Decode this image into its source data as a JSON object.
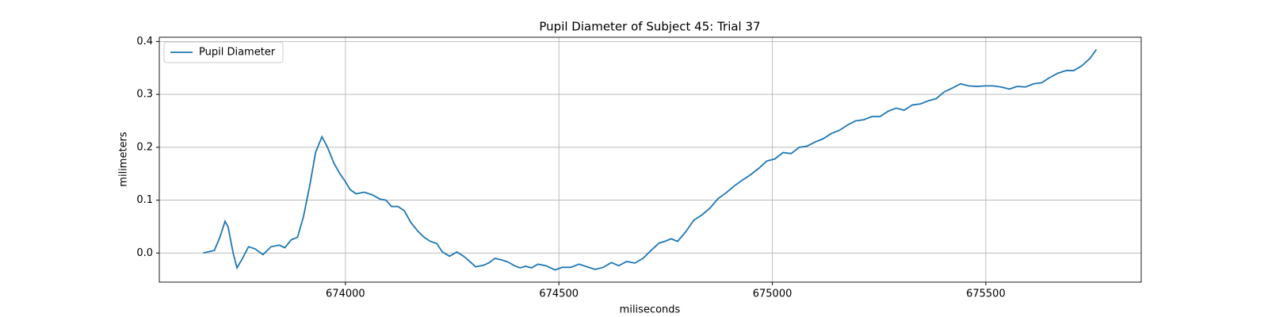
{
  "chart_data": {
    "type": "line",
    "title": "Pupil Diameter of Subject 45: Trial 37",
    "xlabel": "miliseconds",
    "ylabel": "milimeters",
    "x": [
      673667,
      673693,
      673706,
      673718,
      673725,
      673737,
      673746,
      673759,
      673773,
      673788,
      673807,
      673826,
      673845,
      673858,
      673873,
      673888,
      673902,
      673917,
      673930,
      673945,
      673958,
      673973,
      673987,
      674000,
      674011,
      674025,
      674044,
      674063,
      674081,
      674095,
      674108,
      674123,
      674138,
      674153,
      674169,
      674184,
      674199,
      674214,
      674227,
      674244,
      674261,
      674277,
      674290,
      674305,
      674324,
      674337,
      674350,
      674366,
      674381,
      674396,
      674409,
      674422,
      674436,
      674451,
      674470,
      674491,
      674508,
      674528,
      674547,
      674566,
      674585,
      674604,
      674623,
      674640,
      674659,
      674678,
      674697,
      674716,
      674735,
      674748,
      674763,
      674778,
      674797,
      674816,
      674835,
      674854,
      674873,
      674892,
      674911,
      674930,
      674949,
      674968,
      674987,
      675006,
      675025,
      675044,
      675063,
      675081,
      675100,
      675119,
      675138,
      675157,
      675176,
      675195,
      675214,
      675233,
      675252,
      675271,
      675290,
      675309,
      675328,
      675347,
      675366,
      675384,
      675403,
      675422,
      675441,
      675460,
      675479,
      675498,
      675517,
      675536,
      675555,
      675574,
      675593,
      675612,
      675631,
      675650,
      675669,
      675688,
      675706,
      675725,
      675744,
      675759
    ],
    "series": [
      {
        "name": "Pupil Diameter",
        "color": "#1f77b4",
        "values": [
          0.0,
          0.005,
          0.03,
          0.06,
          0.05,
          0.0,
          -0.028,
          -0.01,
          0.012,
          0.008,
          -0.003,
          0.012,
          0.015,
          0.01,
          0.025,
          0.03,
          0.07,
          0.13,
          0.19,
          0.22,
          0.2,
          0.17,
          0.15,
          0.135,
          0.12,
          0.112,
          0.115,
          0.11,
          0.102,
          0.1,
          0.088,
          0.088,
          0.08,
          0.058,
          0.042,
          0.03,
          0.022,
          0.018,
          0.002,
          -0.006,
          0.002,
          -0.006,
          -0.015,
          -0.026,
          -0.023,
          -0.018,
          -0.01,
          -0.013,
          -0.017,
          -0.024,
          -0.028,
          -0.025,
          -0.028,
          -0.021,
          -0.024,
          -0.032,
          -0.027,
          -0.027,
          -0.021,
          -0.026,
          -0.031,
          -0.027,
          -0.018,
          -0.024,
          -0.016,
          -0.019,
          -0.01,
          0.005,
          0.019,
          0.022,
          0.027,
          0.022,
          0.04,
          0.062,
          0.072,
          0.085,
          0.103,
          0.114,
          0.127,
          0.138,
          0.148,
          0.16,
          0.174,
          0.178,
          0.19,
          0.188,
          0.2,
          0.202,
          0.21,
          0.216,
          0.226,
          0.232,
          0.242,
          0.25,
          0.252,
          0.258,
          0.258,
          0.268,
          0.274,
          0.27,
          0.28,
          0.282,
          0.288,
          0.292,
          0.305,
          0.312,
          0.32,
          0.316,
          0.315,
          0.316,
          0.316,
          0.314,
          0.31,
          0.315,
          0.314,
          0.32,
          0.322,
          0.332,
          0.34,
          0.345,
          0.345,
          0.354,
          0.368,
          0.385
        ]
      }
    ],
    "xlim": [
      673564,
      675864
    ],
    "ylim": [
      -0.055,
      0.408
    ],
    "xticks": [
      674000,
      674500,
      675000,
      675500
    ],
    "yticks": [
      {
        "value": 0,
        "label": "0.0"
      },
      0.1,
      0.2,
      0.3,
      0.4
    ],
    "grid": true,
    "legend": "upper left"
  }
}
